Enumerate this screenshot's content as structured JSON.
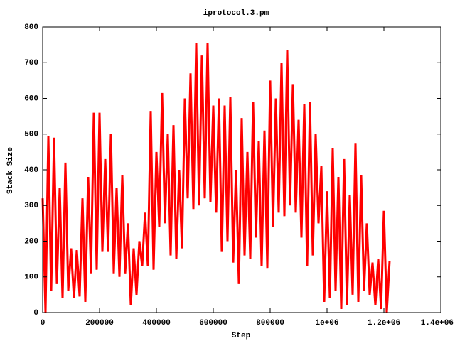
{
  "chart_data": {
    "type": "line",
    "title": "iprotocol.3.pm",
    "xlabel": "Step",
    "ylabel": "Stack Size",
    "color": "#ff0000",
    "xlim": [
      0,
      1400000
    ],
    "xticks": [
      0,
      200000,
      400000,
      600000,
      800000,
      {
        "value": 1000000,
        "label": "1e+06"
      },
      {
        "value": 1200000,
        "label": "1.2e+06"
      },
      {
        "value": 1400000,
        "label": "1.4e+06"
      }
    ],
    "ylim": [
      0,
      800
    ],
    "yticks": [
      0,
      100,
      200,
      300,
      400,
      500,
      600,
      700,
      800
    ],
    "x": [
      0,
      10000,
      20000,
      30000,
      40000,
      50000,
      60000,
      70000,
      80000,
      90000,
      100000,
      110000,
      120000,
      130000,
      140000,
      150000,
      160000,
      170000,
      180000,
      190000,
      200000,
      210000,
      220000,
      230000,
      240000,
      250000,
      260000,
      270000,
      280000,
      290000,
      300000,
      310000,
      320000,
      330000,
      340000,
      350000,
      360000,
      370000,
      380000,
      390000,
      400000,
      410000,
      420000,
      430000,
      440000,
      450000,
      460000,
      470000,
      480000,
      490000,
      500000,
      510000,
      520000,
      530000,
      540000,
      550000,
      560000,
      570000,
      580000,
      590000,
      600000,
      610000,
      620000,
      630000,
      640000,
      650000,
      660000,
      670000,
      680000,
      690000,
      700000,
      710000,
      720000,
      730000,
      740000,
      750000,
      760000,
      770000,
      780000,
      790000,
      800000,
      810000,
      820000,
      830000,
      840000,
      850000,
      860000,
      870000,
      880000,
      890000,
      900000,
      910000,
      920000,
      930000,
      940000,
      950000,
      960000,
      970000,
      980000,
      990000,
      1000000,
      1010000,
      1020000,
      1030000,
      1040000,
      1050000,
      1060000,
      1070000,
      1080000,
      1090000,
      1100000,
      1110000,
      1120000,
      1130000,
      1140000,
      1150000,
      1160000,
      1170000,
      1180000,
      1190000,
      1200000,
      1210000,
      1220000
    ],
    "values": [
      320,
      0,
      495,
      60,
      490,
      80,
      350,
      40,
      420,
      60,
      180,
      40,
      175,
      45,
      320,
      30,
      380,
      110,
      560,
      120,
      560,
      170,
      430,
      170,
      500,
      110,
      350,
      100,
      385,
      110,
      250,
      20,
      180,
      50,
      200,
      130,
      280,
      130,
      565,
      120,
      450,
      240,
      615,
      250,
      500,
      160,
      525,
      150,
      400,
      180,
      600,
      320,
      670,
      290,
      755,
      300,
      720,
      320,
      755,
      310,
      580,
      280,
      600,
      170,
      580,
      200,
      605,
      140,
      400,
      80,
      545,
      160,
      450,
      150,
      590,
      210,
      480,
      130,
      510,
      125,
      650,
      240,
      600,
      280,
      700,
      270,
      735,
      300,
      640,
      280,
      540,
      210,
      585,
      130,
      590,
      160,
      500,
      250,
      410,
      30,
      340,
      40,
      460,
      60,
      380,
      10,
      430,
      20,
      330,
      50,
      475,
      30,
      385,
      60,
      250,
      50,
      140,
      20,
      150,
      10,
      285,
      0,
      145
    ]
  }
}
